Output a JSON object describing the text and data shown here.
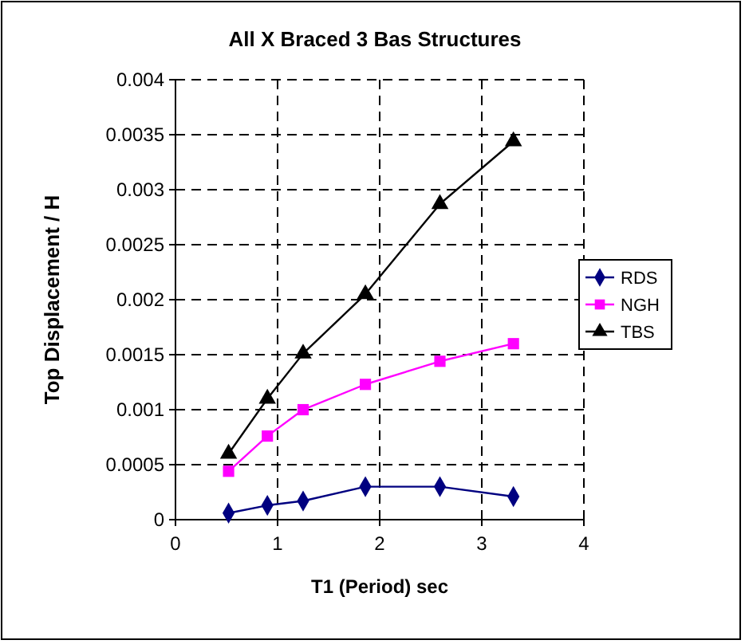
{
  "chart_data": {
    "type": "line",
    "title": "All X Braced 3 Bas Structures",
    "xlabel": "T1 (Period) sec",
    "ylabel": "Top Displacement / H",
    "xlim": [
      0,
      4
    ],
    "xticks": [
      0,
      1,
      2,
      3,
      4
    ],
    "ylim": [
      0,
      0.004
    ],
    "yticks": [
      0,
      0.0005,
      0.001,
      0.0015,
      0.002,
      0.0025,
      0.003,
      0.0035,
      0.004
    ],
    "grid": true,
    "legend": "right",
    "x": [
      0.52,
      0.9,
      1.25,
      1.86,
      2.59,
      3.31
    ],
    "series": [
      {
        "name": "RDS",
        "color": "#000080",
        "marker": "diamond",
        "values": [
          6e-05,
          0.00013,
          0.00017,
          0.0003,
          0.0003,
          0.00021
        ]
      },
      {
        "name": "NGH",
        "color": "#ff00ff",
        "marker": "square",
        "values": [
          0.00044,
          0.00076,
          0.001,
          0.00123,
          0.00144,
          0.0016
        ]
      },
      {
        "name": "TBS",
        "color": "#000000",
        "marker": "triangle",
        "values": [
          0.0006,
          0.0011,
          0.00151,
          0.00205,
          0.00287,
          0.00344
        ]
      }
    ]
  }
}
